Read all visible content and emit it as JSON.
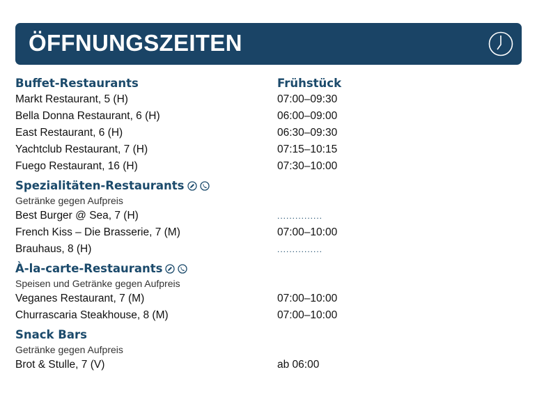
{
  "banner": {
    "title": "ÖFFNUNGSZEITEN",
    "icon": "clock-icon",
    "color": "#1a4466"
  },
  "column_header": "Frühstück",
  "groups": [
    {
      "title": "Buffet-Restaurants",
      "rows": [
        {
          "name": "Markt Restaurant, 5 (H)",
          "time": "07:00–09:30"
        },
        {
          "name": "Bella Donna Restaurant, 6 (H)",
          "time": "06:00–09:00"
        },
        {
          "name": "East Restaurant, 6 (H)",
          "time": "06:30–09:30"
        },
        {
          "name": "Yachtclub Restaurant, 7 (H)",
          "time": "07:15–10:15"
        },
        {
          "name": "Fuego Restaurant, 16 (H)",
          "time": "07:30–10:00"
        }
      ]
    },
    {
      "title": "Spezialitäten-Restaurants",
      "icons": [
        "reservation-pencil-icon",
        "phone-icon"
      ],
      "subtitle": "Getränke gegen Aufpreis",
      "rows": [
        {
          "name": "Best Burger @ Sea, 7 (H)",
          "time": "..............."
        },
        {
          "name": "French Kiss – Die Brasserie, 7 (M)",
          "time": "07:00–10:00"
        },
        {
          "name": "Brauhaus, 8 (H)",
          "time": "..............."
        }
      ]
    },
    {
      "title": "À-la-carte-Restaurants",
      "icons": [
        "reservation-pencil-icon",
        "phone-icon"
      ],
      "subtitle": "Speisen und Getränke gegen Aufpreis",
      "rows": [
        {
          "name": "Veganes Restaurant, 7 (M)",
          "time": "07:00–10:00"
        },
        {
          "name": "Churrascaria Steakhouse, 8 (M)",
          "time": "07:00–10:00"
        }
      ]
    },
    {
      "title": "Snack Bars",
      "subtitle": "Getränke gegen Aufpreis",
      "rows": [
        {
          "name": "Brot & Stulle, 7 (V)",
          "time": "ab 06:00"
        }
      ]
    }
  ]
}
